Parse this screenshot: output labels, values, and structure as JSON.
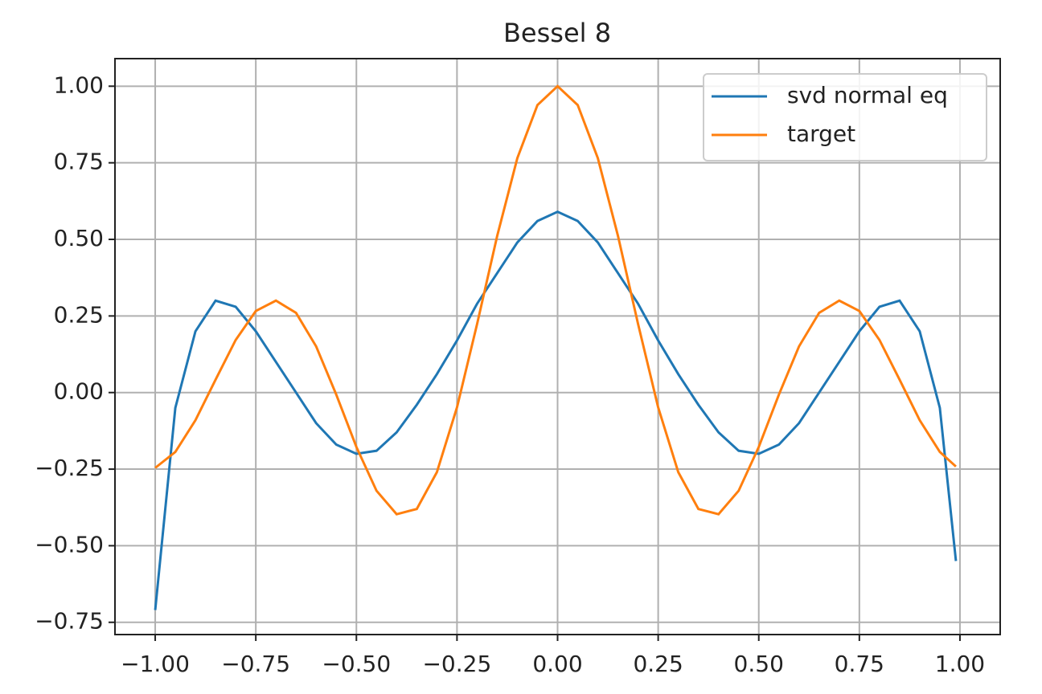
{
  "chart_data": {
    "type": "line",
    "title": "Bessel 8",
    "x": [
      -1,
      -0.95,
      -0.9,
      -0.85,
      -0.8,
      -0.75,
      -0.7,
      -0.65,
      -0.6,
      -0.55,
      -0.5,
      -0.45,
      -0.4,
      -0.35,
      -0.3,
      -0.25,
      -0.2,
      -0.15,
      -0.1,
      -0.05,
      0,
      0.05,
      0.1,
      0.15,
      0.2,
      0.25,
      0.3,
      0.35,
      0.4,
      0.45,
      0.5,
      0.55,
      0.6,
      0.65,
      0.7,
      0.75,
      0.8,
      0.85,
      0.9,
      0.95,
      0.99
    ],
    "series": [
      {
        "name": "svd normal eq",
        "color": "#1f77b4",
        "values": [
          -0.71,
          -0.05,
          0.2,
          0.3,
          0.28,
          0.2,
          0.1,
          0.0,
          -0.1,
          -0.17,
          -0.2,
          -0.19,
          -0.13,
          -0.04,
          0.06,
          0.17,
          0.29,
          0.39,
          0.49,
          0.56,
          0.59,
          0.56,
          0.49,
          0.39,
          0.29,
          0.17,
          0.06,
          -0.04,
          -0.13,
          -0.19,
          -0.2,
          -0.17,
          -0.1,
          0.0,
          0.1,
          0.2,
          0.28,
          0.3,
          0.2,
          -0.05,
          -0.55
        ]
      },
      {
        "name": "target",
        "color": "#ff7f0e",
        "values": [
          -0.2459,
          -0.1939,
          -0.0903,
          0.0419,
          0.1717,
          0.2663,
          0.3001,
          0.2601,
          0.1506,
          -0.0068,
          -0.1776,
          -0.3205,
          -0.3971,
          -0.3801,
          -0.2601,
          -0.0484,
          0.2239,
          0.5118,
          0.7652,
          0.9385,
          1,
          0.9385,
          0.7652,
          0.5118,
          0.2239,
          -0.0484,
          -0.2601,
          -0.3801,
          -0.3971,
          -0.3205,
          -0.1776,
          -0.0068,
          0.1506,
          0.2601,
          0.3001,
          0.2663,
          0.1717,
          0.0419,
          -0.0903,
          -0.1939,
          -0.2415
        ]
      }
    ],
    "xlim": [
      -1.1,
      1.1
    ],
    "ylim": [
      -0.79,
      1.09
    ],
    "xticks": [
      {
        "value": -1,
        "label": "−1.00"
      },
      {
        "value": -0.75,
        "label": "−0.75"
      },
      {
        "value": -0.5,
        "label": "−0.50"
      },
      {
        "value": -0.25,
        "label": "−0.25"
      },
      {
        "value": 0,
        "label": "0.00"
      },
      {
        "value": 0.25,
        "label": "0.25"
      },
      {
        "value": 0.5,
        "label": "0.50"
      },
      {
        "value": 0.75,
        "label": "0.75"
      },
      {
        "value": 1,
        "label": "1.00"
      }
    ],
    "yticks": [
      {
        "value": -0.75,
        "label": "−0.75"
      },
      {
        "value": -0.5,
        "label": "−0.50"
      },
      {
        "value": -0.25,
        "label": "−0.25"
      },
      {
        "value": 0,
        "label": "0.00"
      },
      {
        "value": 0.25,
        "label": "0.25"
      },
      {
        "value": 0.5,
        "label": "0.50"
      },
      {
        "value": 0.75,
        "label": "0.75"
      },
      {
        "value": 1,
        "label": "1.00"
      }
    ],
    "grid": true,
    "legend": "upper right"
  }
}
